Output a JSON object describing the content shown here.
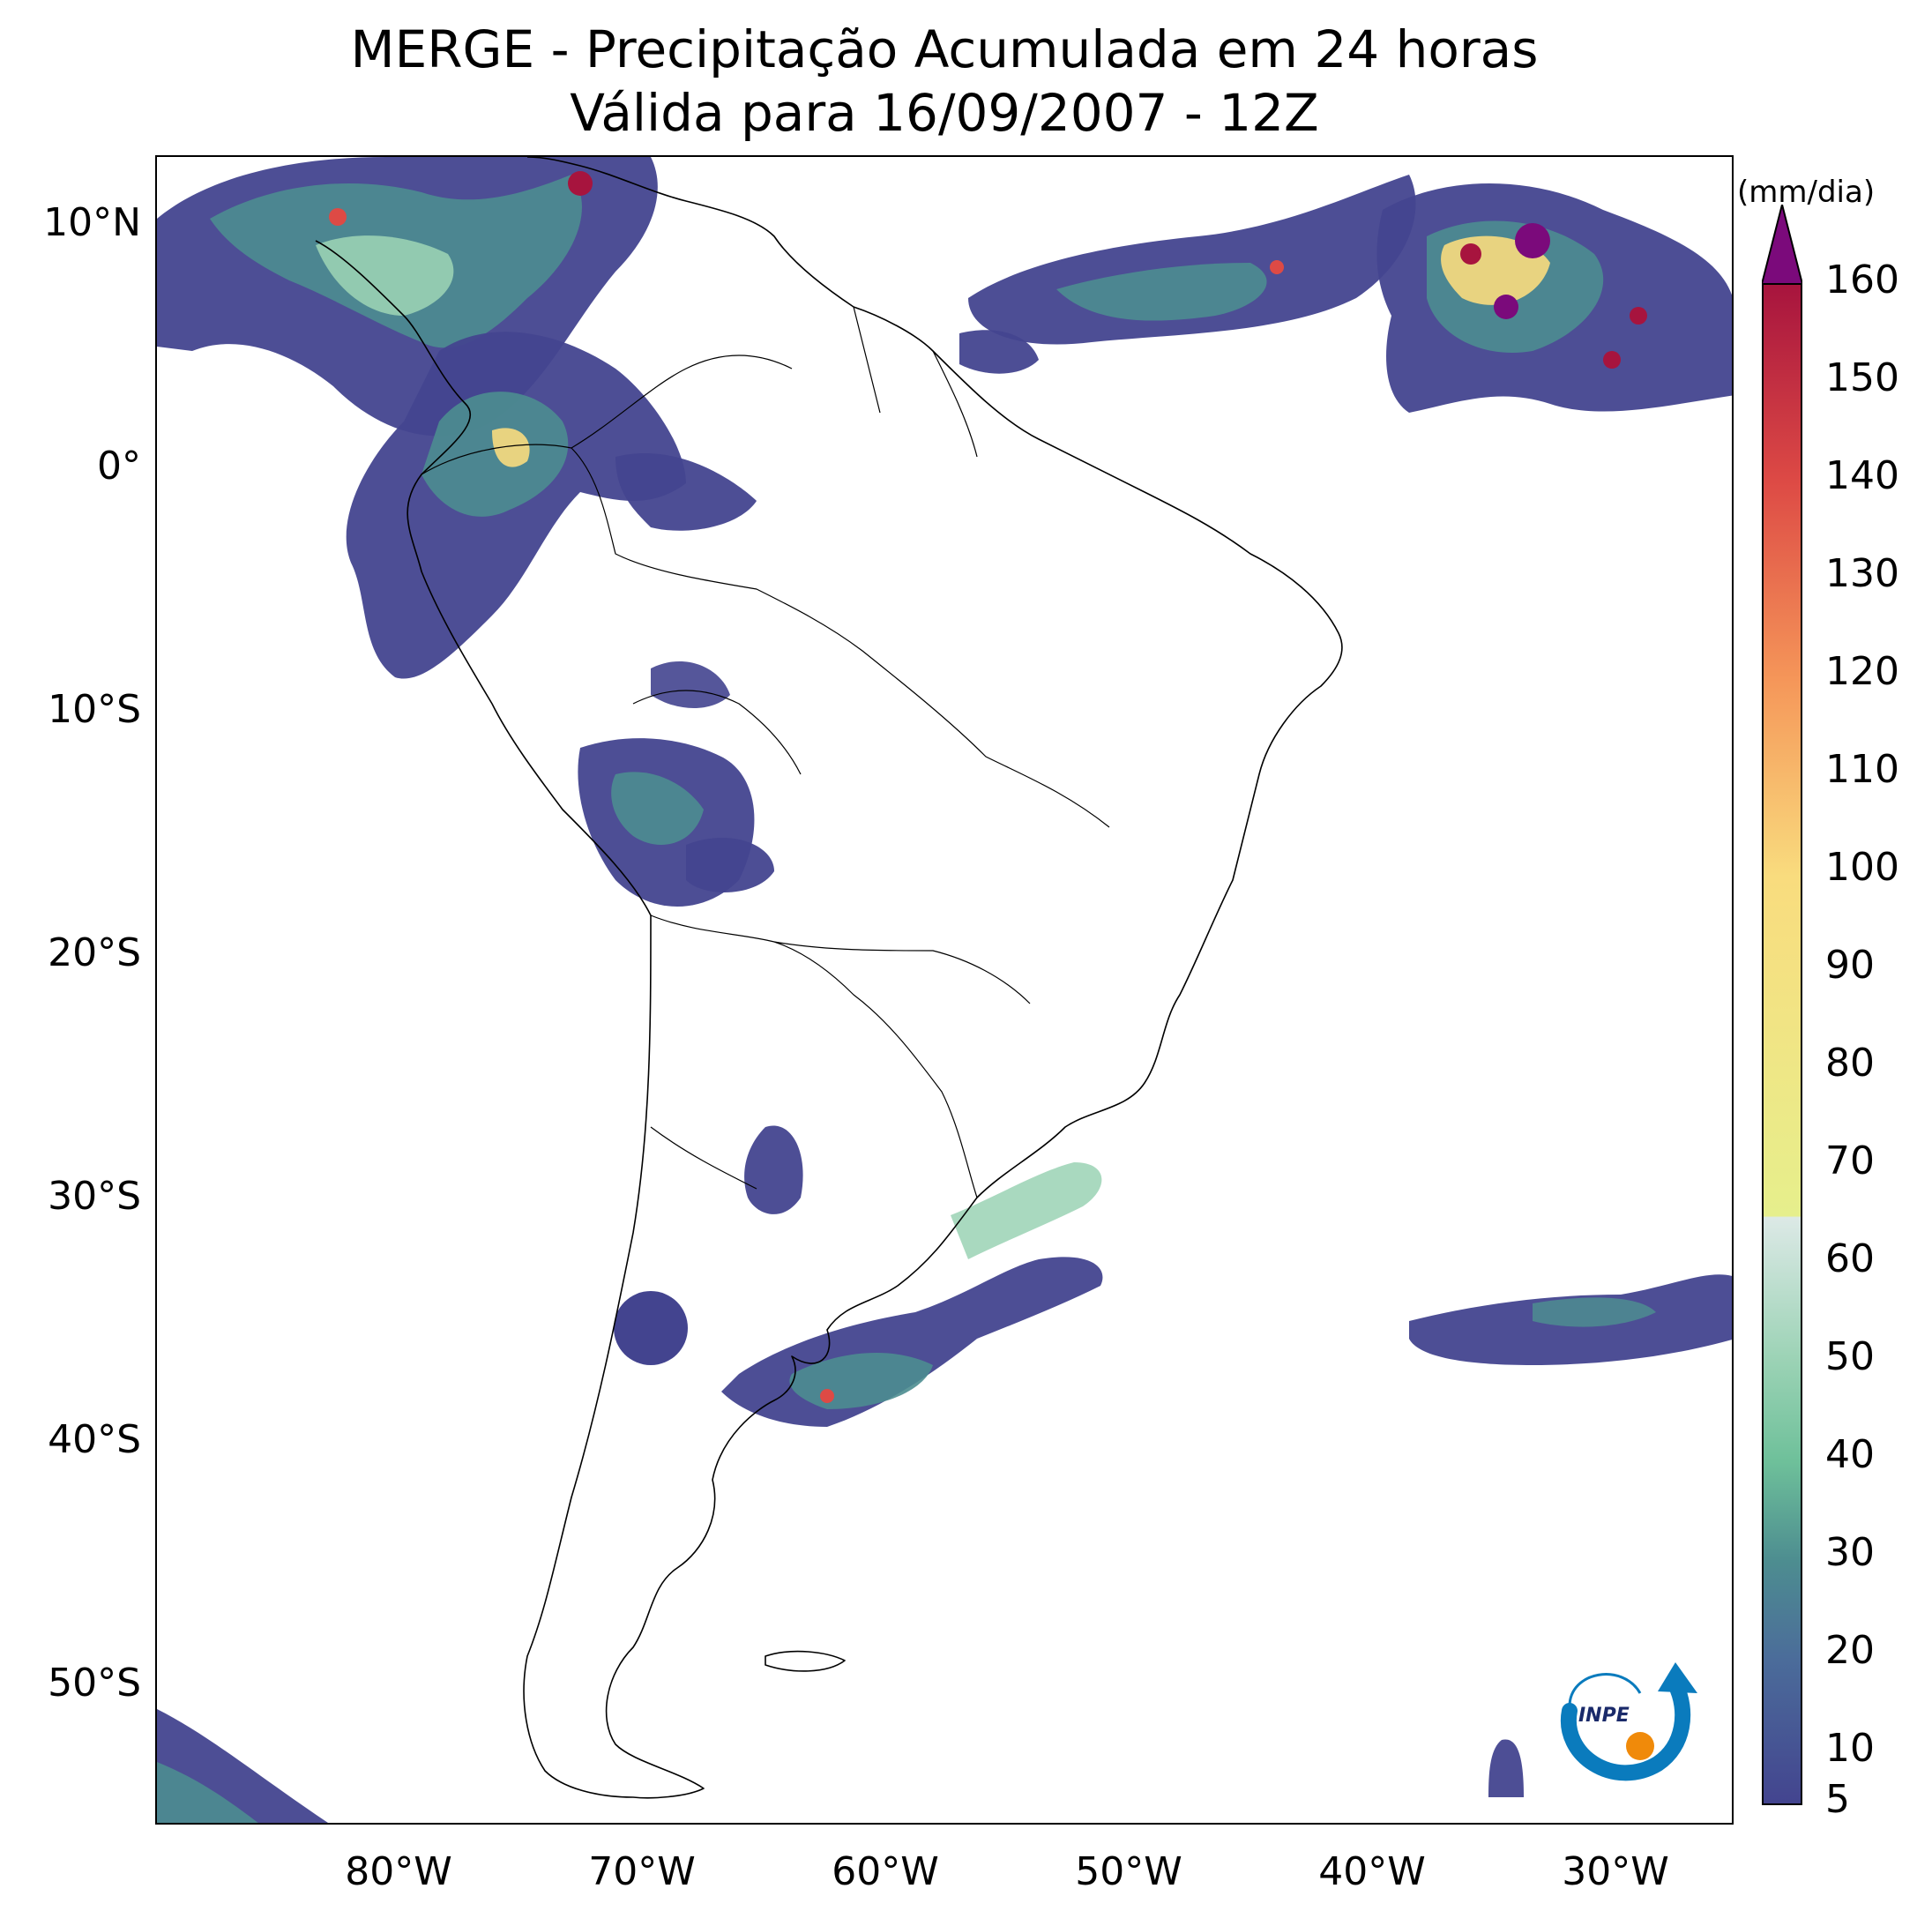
{
  "title": {
    "line1": "MERGE - Precipitação Acumulada em 24 horas",
    "line2": "Válida para 16/09/2007 - 12Z"
  },
  "map": {
    "region": "South America",
    "projection": "PlateCarree",
    "extent": {
      "lon": [
        -90,
        -25
      ],
      "lat": [
        -56,
        13
      ]
    },
    "lat_ticks": [
      "10°N",
      "0°",
      "10°S",
      "20°S",
      "30°S",
      "40°S",
      "50°S"
    ],
    "lon_ticks": [
      "80°W",
      "70°W",
      "60°W",
      "50°W",
      "40°W",
      "30°W"
    ],
    "land_outline_color": "#000000",
    "background_color": "#ffffff"
  },
  "colorbar": {
    "unit": "(mm/dia)",
    "tick_labels": [
      "5",
      "10",
      "20",
      "30",
      "40",
      "50",
      "60",
      "70",
      "80",
      "90",
      "100",
      "110",
      "120",
      "130",
      "140",
      "150",
      "160"
    ],
    "extend": "max",
    "over_color": "#7b0a7b",
    "stops": [
      {
        "value": 5,
        "color": "#43448f"
      },
      {
        "value": 20,
        "color": "#4b6c9a"
      },
      {
        "value": 30,
        "color": "#4d8d90"
      },
      {
        "value": 40,
        "color": "#6ec09a"
      },
      {
        "value": 50,
        "color": "#9ad2b4"
      },
      {
        "value": 65,
        "color": "#dce9e6"
      },
      {
        "value": 70,
        "color": "#e6ef8c"
      },
      {
        "value": 100,
        "color": "#f9dc7e"
      },
      {
        "value": 120,
        "color": "#f59659"
      },
      {
        "value": 140,
        "color": "#dd4a45"
      },
      {
        "value": 160,
        "color": "#a7143e"
      }
    ]
  },
  "precipitation_regions": [
    {
      "name": "Colombia / Central America",
      "intensity": "high"
    },
    {
      "name": "Western Amazon (Ecuador/Peru/Colombia)",
      "intensity": "medium"
    },
    {
      "name": "Bolivia",
      "intensity": "medium"
    },
    {
      "name": "Uruguay / Rio Grande do Sul",
      "intensity": "medium"
    },
    {
      "name": "Tropical Atlantic ITCZ",
      "intensity": "very high"
    },
    {
      "name": "South Atlantic frontal band",
      "intensity": "low"
    }
  ],
  "logo": {
    "text": "INPE",
    "ring_color": "#0a7bbd",
    "dot_color": "#f08a0a"
  }
}
